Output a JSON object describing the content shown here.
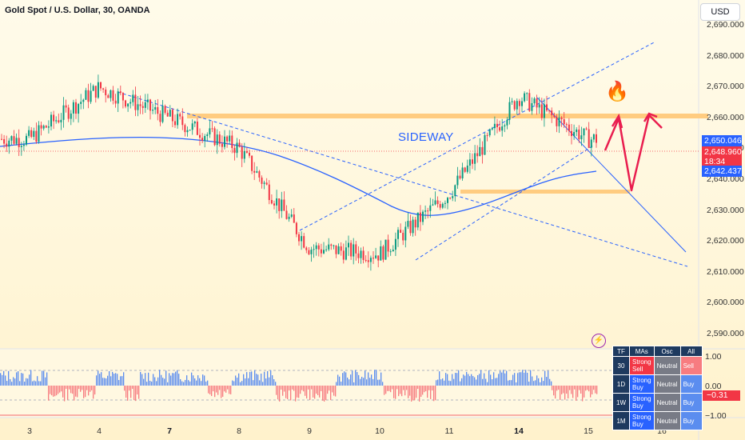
{
  "header": {
    "symbol_title": "Gold Spot / U.S. Dollar, 30, OANDA",
    "currency_button": "USD"
  },
  "price_axis": {
    "labels": [
      "2,690.000",
      "2,680.000",
      "2,670.000",
      "2,660.000",
      "2,650.000",
      "2,640.000",
      "2,630.000",
      "2,620.000",
      "2,610.000",
      "2,600.000",
      "2,590.000"
    ]
  },
  "price_tags": {
    "upper": "2,650.046",
    "current": "2,648.960",
    "countdown": "18:34",
    "ma": "2,642.437"
  },
  "time_axis": {
    "labels": [
      {
        "text": "3",
        "bold": false
      },
      {
        "text": "4",
        "bold": false
      },
      {
        "text": "7",
        "bold": true
      },
      {
        "text": "8",
        "bold": false
      },
      {
        "text": "9",
        "bold": false
      },
      {
        "text": "10",
        "bold": false
      },
      {
        "text": "11",
        "bold": false
      },
      {
        "text": "14",
        "bold": true
      },
      {
        "text": "15",
        "bold": false
      },
      {
        "text": "16",
        "bold": false
      }
    ]
  },
  "annotation": {
    "sideway": "SIDEWAY",
    "fire": "🔥"
  },
  "oscillator_axis": {
    "labels": [
      "1.00",
      "0.00",
      "−1.00"
    ],
    "value": "−0.31"
  },
  "technical_table": {
    "headers": [
      "TF",
      "MAs",
      "Osc",
      "All"
    ],
    "rows": [
      {
        "tf": "30",
        "mas": "Strong Sell",
        "osc": "Neutral",
        "all": "Sell"
      },
      {
        "tf": "1D",
        "mas": "Strong Buy",
        "osc": "Neutral",
        "all": "Buy"
      },
      {
        "tf": "1W",
        "mas": "Strong Buy",
        "osc": "Neutral",
        "all": "Buy"
      },
      {
        "tf": "1M",
        "mas": "Strong Buy",
        "osc": "Neutral",
        "all": "Buy"
      }
    ]
  },
  "colors": {
    "up": "#089981",
    "down": "#f23645",
    "ma": "#2962ff",
    "zone": "#ffcc80",
    "arrow": "#e91e4f",
    "price_tag": "#f23645"
  },
  "chart_data": {
    "type": "candlestick",
    "ylim": [
      2585,
      2695
    ],
    "x_categories": [
      "3",
      "4",
      "7",
      "8",
      "9",
      "10",
      "11",
      "14",
      "15",
      "16"
    ],
    "approx_close_path": [
      {
        "day": "3",
        "price": 2648
      },
      {
        "day": "4",
        "price": 2665
      },
      {
        "day": "7",
        "price": 2655
      },
      {
        "day": "8",
        "price": 2645
      },
      {
        "day": "9",
        "price": 2612
      },
      {
        "day": "10",
        "price": 2610
      },
      {
        "day": "11",
        "price": 2630
      },
      {
        "day": "14",
        "price": 2662
      },
      {
        "day": "15",
        "price": 2648
      }
    ],
    "resistance_zone": 2660,
    "support_zone": 2636,
    "current_price": 2648.96,
    "ma_value": 2642.437,
    "oscillator": {
      "range": [
        -1,
        1
      ],
      "current": -0.31
    }
  }
}
